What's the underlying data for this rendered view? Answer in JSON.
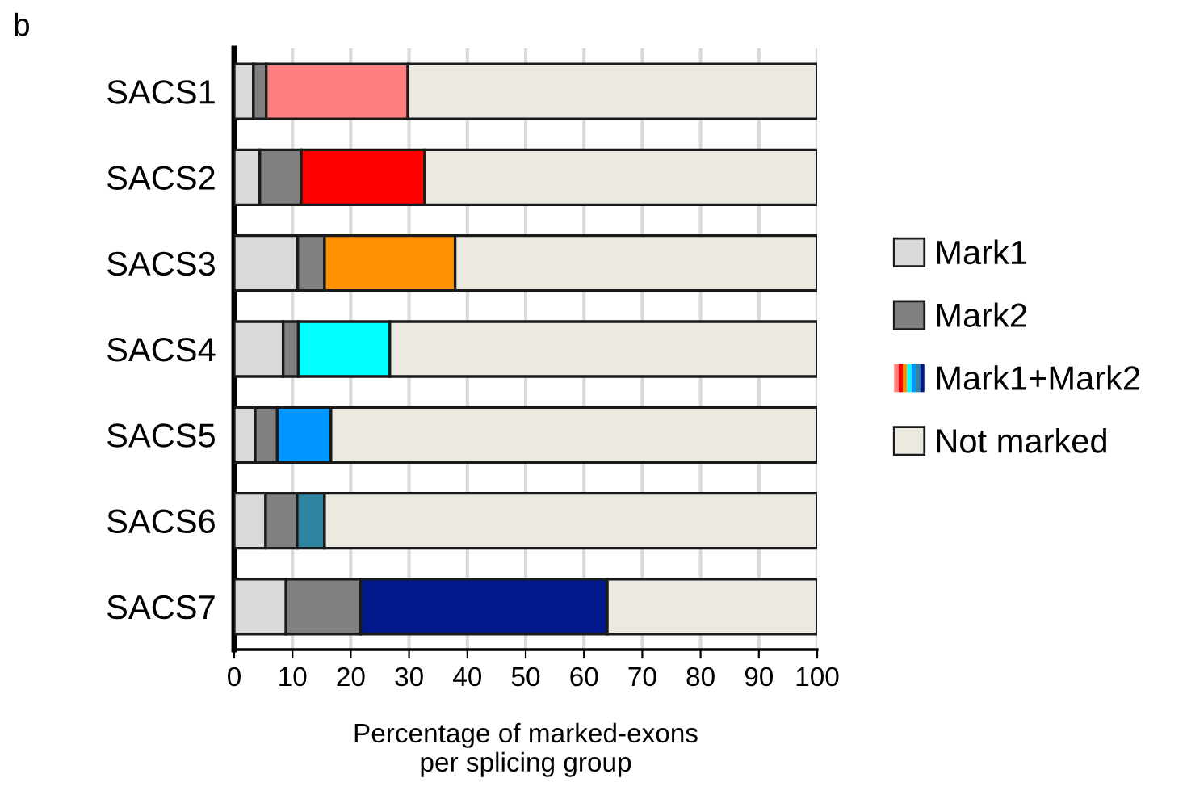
{
  "chart_data": {
    "type": "bar",
    "orientation": "horizontal",
    "stacked": true,
    "categories": [
      "SACS1",
      "SACS2",
      "SACS3",
      "SACS4",
      "SACS5",
      "SACS6",
      "SACS7"
    ],
    "series": [
      {
        "name": "Mark1",
        "color": "#d9d9d9",
        "values": [
          3.3,
          4.4,
          10.9,
          8.4,
          3.6,
          5.4,
          8.9
        ]
      },
      {
        "name": "Mark2",
        "color": "#808080",
        "values": [
          2.2,
          7.1,
          4.6,
          2.6,
          3.8,
          5.4,
          12.8
        ]
      },
      {
        "name": "Mark1+Mark2",
        "colors": [
          "#ff7f7f",
          "#ff0000",
          "#ff9000",
          "#00ffff",
          "#0096ff",
          "#2e86a0",
          "#001a8c"
        ],
        "values": [
          24.3,
          21.2,
          22.4,
          15.7,
          9.2,
          4.7,
          42.3
        ]
      },
      {
        "name": "Not marked",
        "color": "#ece9e0",
        "values": [
          70.2,
          67.3,
          62.1,
          73.3,
          83.4,
          84.5,
          36.0
        ]
      }
    ],
    "xlabel": "Percentage of marked-exons\nper splicing group",
    "xlim": [
      0,
      100
    ],
    "xticks": [
      0,
      10,
      20,
      30,
      40,
      50,
      60,
      70,
      80,
      90,
      100
    ],
    "grid": "x",
    "legend": "right",
    "annotations": [
      "b"
    ]
  }
}
